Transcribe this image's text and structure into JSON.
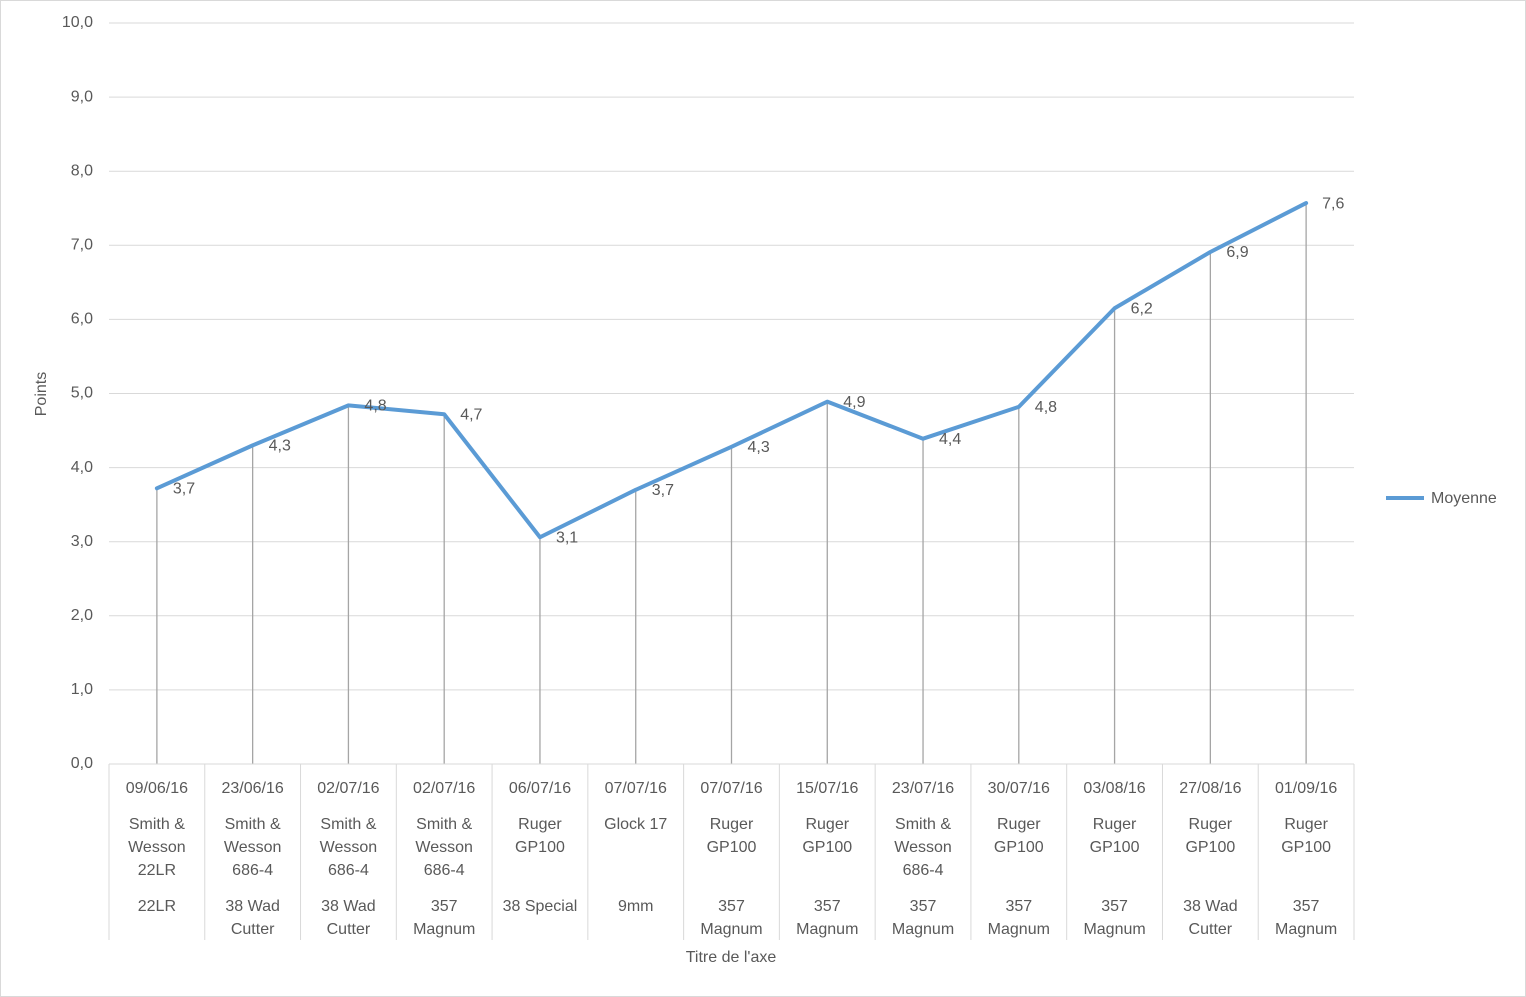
{
  "chart_data": {
    "type": "line",
    "y_axis_title": "Points",
    "x_axis_title": "Titre de l'axe",
    "categories": [
      [
        "09/06/16",
        "Smith & Wesson 22LR",
        "22LR"
      ],
      [
        "23/06/16",
        "Smith & Wesson 686-4",
        "38 Wad Cutter"
      ],
      [
        "02/07/16",
        "Smith & Wesson 686-4",
        "38 Wad Cutter"
      ],
      [
        "02/07/16",
        "Smith & Wesson 686-4",
        "357 Magnum"
      ],
      [
        "06/07/16",
        "Ruger GP100",
        "38 Special"
      ],
      [
        "07/07/16",
        "Glock 17",
        "9mm"
      ],
      [
        "07/07/16",
        "Ruger GP100",
        "357 Magnum"
      ],
      [
        "15/07/16",
        "Ruger GP100",
        "357 Magnum"
      ],
      [
        "23/07/16",
        "Smith & Wesson 686-4",
        "357 Magnum"
      ],
      [
        "30/07/16",
        "Ruger GP100",
        "357 Magnum"
      ],
      [
        "03/08/16",
        "Ruger GP100",
        "357 Magnum"
      ],
      [
        "27/08/16",
        "Ruger GP100",
        "38 Wad Cutter"
      ],
      [
        "01/09/16",
        "Ruger GP100",
        "357 Magnum"
      ]
    ],
    "series": [
      {
        "name": "Moyenne",
        "color": "#5b9bd5",
        "values": [
          3.72,
          4.3,
          4.84,
          4.72,
          3.06,
          3.7,
          4.28,
          4.89,
          4.39,
          4.82,
          6.15,
          6.91,
          7.57
        ],
        "value_labels": [
          "3,7",
          "4,3",
          "4,8",
          "4,7",
          "3,1",
          "3,7",
          "4,3",
          "4,9",
          "4,4",
          "4,8",
          "6,2",
          "6,9",
          "7,6"
        ]
      }
    ],
    "drop_lines": true,
    "ylim": [
      0,
      10
    ],
    "yticks": [
      {
        "value": 0,
        "label": "0,0"
      },
      {
        "value": 1,
        "label": "1,0"
      },
      {
        "value": 2,
        "label": "2,0"
      },
      {
        "value": 3,
        "label": "3,0"
      },
      {
        "value": 4,
        "label": "4,0"
      },
      {
        "value": 5,
        "label": "5,0"
      },
      {
        "value": 6,
        "label": "6,0"
      },
      {
        "value": 7,
        "label": "7,0"
      },
      {
        "value": 8,
        "label": "8,0"
      },
      {
        "value": 9,
        "label": "9,0"
      },
      {
        "value": 10,
        "label": "10,0"
      }
    ],
    "grid": true,
    "legend": "right"
  }
}
